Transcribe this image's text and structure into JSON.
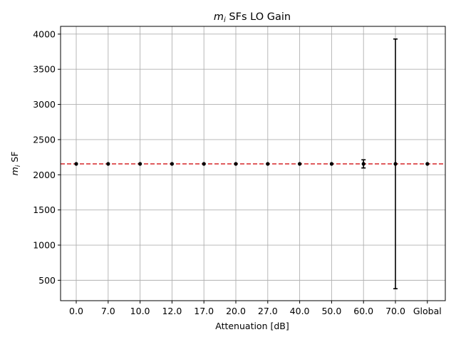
{
  "chart_data": {
    "type": "scatter",
    "title_prefix": "m",
    "title_subscript": "i",
    "title_suffix": " SFs LO Gain",
    "xlabel": "Attenuation [dB]",
    "ylabel_prefix": "m",
    "ylabel_subscript": "i",
    "ylabel_suffix": " SF",
    "categories": [
      "0.0",
      "7.0",
      "10.0",
      "12.0",
      "17.0",
      "20.0",
      "27.0",
      "40.0",
      "50.0",
      "60.0",
      "70.0",
      "Global"
    ],
    "values": [
      2155,
      2155,
      2155,
      2155,
      2155,
      2155,
      2155,
      2155,
      2155,
      2155,
      2155,
      2155
    ],
    "errors": [
      0,
      0,
      0,
      0,
      0,
      0,
      0,
      0,
      0,
      58,
      1775,
      0
    ],
    "reference_line": 2155,
    "ylim": [
      210,
      4110
    ],
    "yticks": [
      500,
      1000,
      1500,
      2000,
      2500,
      3000,
      3500,
      4000
    ],
    "grid": true,
    "colors": {
      "points": "#000000",
      "error_bars": "#000000",
      "reference_line": "#d62728",
      "grid": "#b0b0b0"
    }
  }
}
